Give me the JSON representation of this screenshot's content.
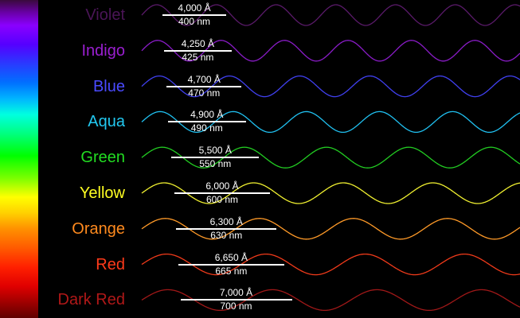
{
  "colors": [
    {
      "name": "Violet",
      "angstrom": "4,000 Å",
      "nm": "400 nm",
      "nm_value": 400,
      "color": "#4a1556",
      "wave": "#5a1a6a"
    },
    {
      "name": "Indigo",
      "angstrom": "4,250 Å",
      "nm": "425 nm",
      "nm_value": 425,
      "color": "#9a1fd0",
      "wave": "#8a1cc8"
    },
    {
      "name": "Blue",
      "angstrom": "4,700 Å",
      "nm": "470 nm",
      "nm_value": 470,
      "color": "#4a4aff",
      "wave": "#4040f0"
    },
    {
      "name": "Aqua",
      "angstrom": "4,900 Å",
      "nm": "490 nm",
      "nm_value": 490,
      "color": "#22c8f0",
      "wave": "#20c0f0"
    },
    {
      "name": "Green",
      "angstrom": "5,500 Å",
      "nm": "550 nm",
      "nm_value": 550,
      "color": "#22dd22",
      "wave": "#22cc22"
    },
    {
      "name": "Yellow",
      "angstrom": "6,000 Å",
      "nm": "600 nm",
      "nm_value": 600,
      "color": "#ffff22",
      "wave": "#f0f030"
    },
    {
      "name": "Orange",
      "angstrom": "6,300 Å",
      "nm": "630 nm",
      "nm_value": 630,
      "color": "#ff8a1e",
      "wave": "#ff9a28"
    },
    {
      "name": "Red",
      "angstrom": "6,650 Å",
      "nm": "665 nm",
      "nm_value": 665,
      "color": "#ff3a1a",
      "wave": "#f03a1a"
    },
    {
      "name": "Dark Red",
      "angstrom": "7,000 Å",
      "nm": "700 nm",
      "nm_value": 700,
      "color": "#b01818",
      "wave": "#a01818"
    }
  ]
}
